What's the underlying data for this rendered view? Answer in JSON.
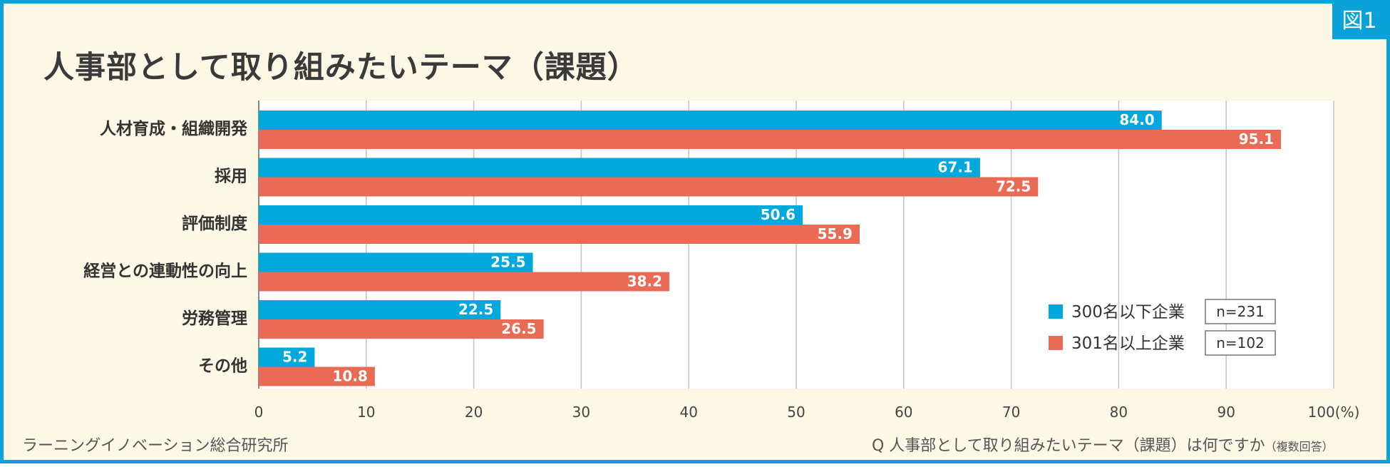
{
  "badge": "図1",
  "title": "人事部として取り組みたいテーマ（課題）",
  "footer": {
    "source": "ラーニングイノベーション総合研究所",
    "question": "Q 人事部として取り組みたいテーマ（課題）は何ですか",
    "question_note": "（複数回答）"
  },
  "colors": {
    "series1": "#00a8dc",
    "series2": "#e96b56",
    "grid": "#c4c4c4",
    "text": "#333333",
    "value_label": "#ffffff"
  },
  "chart_data": {
    "type": "bar",
    "orientation": "horizontal",
    "categories": [
      "人材育成・組織開発",
      "採用",
      "評価制度",
      "経営との連動性の向上",
      "労務管理",
      "その他"
    ],
    "series": [
      {
        "name": "300名以下企業",
        "n_label": "n=231",
        "values": [
          84.0,
          67.1,
          50.6,
          25.5,
          22.5,
          5.2
        ]
      },
      {
        "name": "301名以上企業",
        "n_label": "n=102",
        "values": [
          95.1,
          72.5,
          55.9,
          38.2,
          26.5,
          10.8
        ]
      }
    ],
    "xlim": [
      0,
      100
    ],
    "xticks": [
      "0",
      "10",
      "20",
      "30",
      "40",
      "50",
      "60",
      "70",
      "80",
      "90",
      "100(%)"
    ],
    "xtick_values": [
      0,
      10,
      20,
      30,
      40,
      50,
      60,
      70,
      80,
      90,
      100
    ],
    "grid": true,
    "legend_position": "bottom-right"
  }
}
